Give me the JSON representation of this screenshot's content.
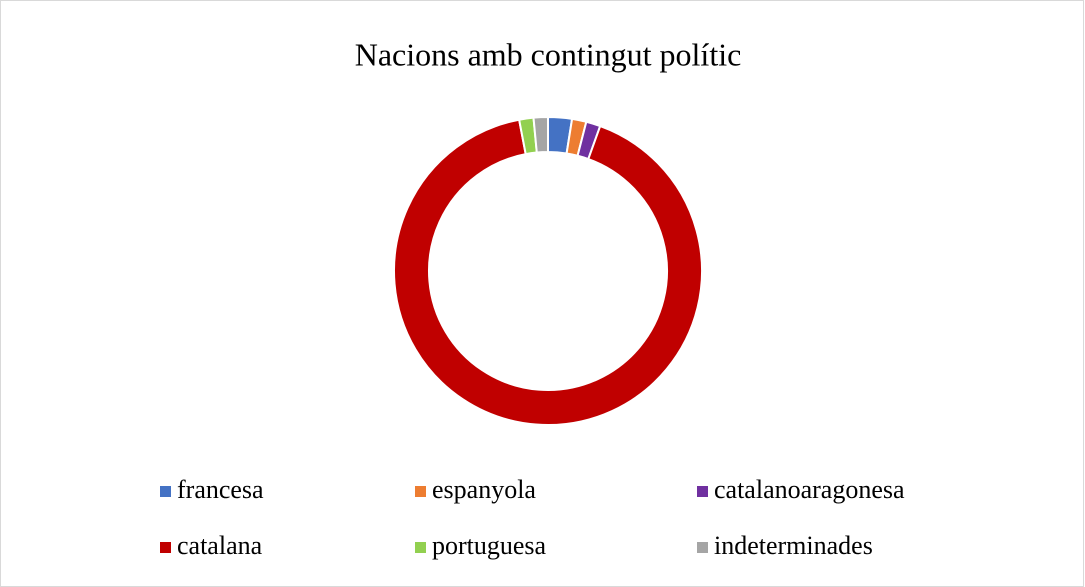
{
  "chart_data": {
    "type": "doughnut",
    "title": "Nacions amb contingut polític",
    "categories": [
      "francesa",
      "espanyola",
      "catalanoaragonesa",
      "catalana",
      "portuguesa",
      "indeterminades"
    ],
    "values": [
      2.5,
      1.5,
      1.5,
      91.5,
      1.5,
      1.5
    ],
    "colors": [
      "#4472c4",
      "#ed7d31",
      "#7030a0",
      "#c00000",
      "#92d050",
      "#a5a5a5"
    ],
    "legend": "bottom"
  }
}
